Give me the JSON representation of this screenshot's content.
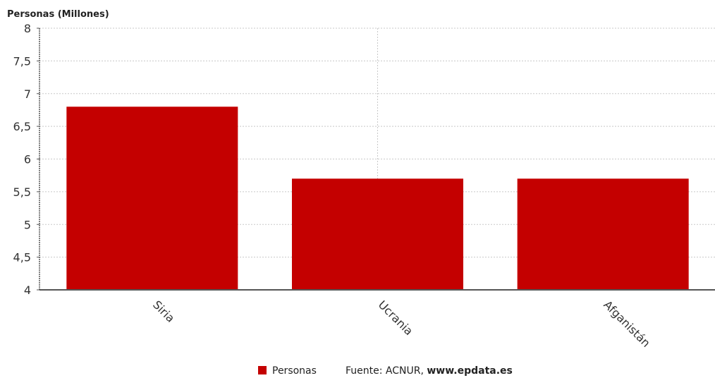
{
  "chart_data": {
    "type": "bar",
    "ylabel": "Personas (Millones)",
    "categories": [
      "Siria",
      "Ucrania",
      "Afganistán"
    ],
    "series": [
      {
        "name": "Personas",
        "values": [
          6.8,
          5.7,
          5.7
        ],
        "color": "#c40000"
      }
    ],
    "ylim": [
      4,
      8
    ],
    "yticks": [
      4,
      4.5,
      5,
      5.5,
      6,
      6.5,
      7,
      7.5,
      8
    ],
    "ytick_labels": [
      "4",
      "4,5",
      "5",
      "5,5",
      "6",
      "6,5",
      "7",
      "7,5",
      "8"
    ],
    "grid": true,
    "legend_position": "bottom-center"
  },
  "source": {
    "prefix": "Fuente: ACNUR, ",
    "site": "www.epdata.es"
  }
}
